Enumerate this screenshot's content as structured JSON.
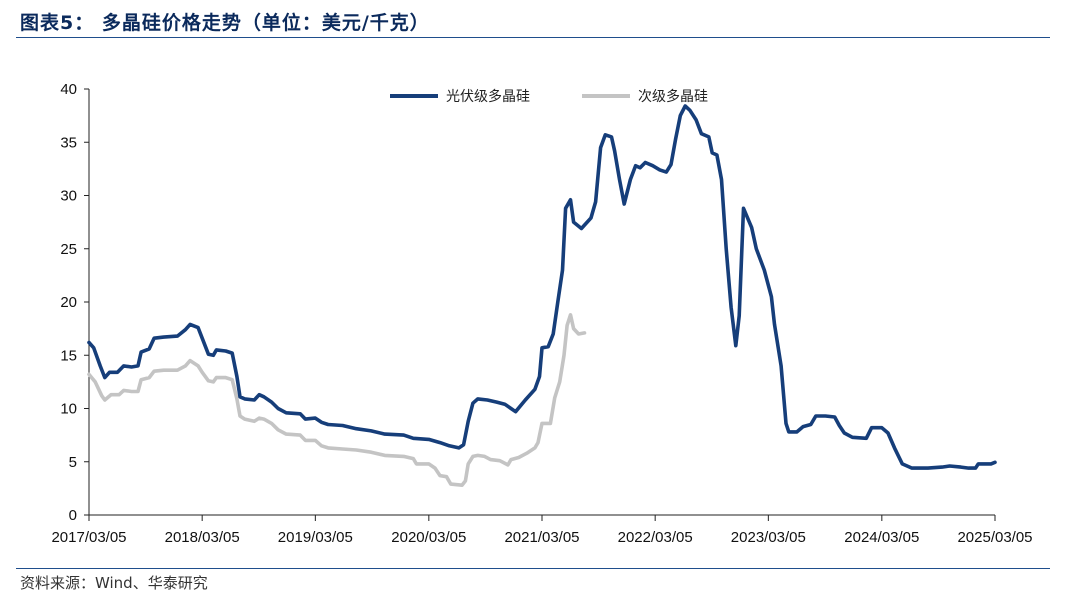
{
  "header": {
    "figure_title": "图表5： 多晶硅价格走势（单位：美元/千克）"
  },
  "footer": {
    "source": "资料来源：Wind、华泰研究"
  },
  "chart_data": {
    "type": "line",
    "title": "多晶硅价格走势（单位：美元/千克）",
    "xlabel": "",
    "ylabel": "",
    "ylim": [
      0,
      40
    ],
    "xlim": [
      "2017/03/05",
      "2025/03/05"
    ],
    "yticks": [
      0,
      5,
      10,
      15,
      20,
      25,
      30,
      35,
      40
    ],
    "yticks_labels": [
      "0",
      "5",
      "10",
      "15",
      "20",
      "25",
      "30",
      "35",
      "40"
    ],
    "xticks": [
      "2017/03/05",
      "2018/03/05",
      "2019/03/05",
      "2020/03/05",
      "2021/03/05",
      "2022/03/05",
      "2023/03/05",
      "2024/03/05",
      "2025/03/05"
    ],
    "grid": false,
    "legend_position": "top",
    "series": [
      {
        "name": "光伏级多晶硅",
        "color": "#163e7a",
        "points": [
          [
            "2017/03/05",
            16.2
          ],
          [
            "2017/03/20",
            15.7
          ],
          [
            "2017/04/10",
            14.0
          ],
          [
            "2017/04/25",
            12.9
          ],
          [
            "2017/05/10",
            13.4
          ],
          [
            "2017/06/05",
            13.4
          ],
          [
            "2017/06/25",
            14.0
          ],
          [
            "2017/07/20",
            13.9
          ],
          [
            "2017/08/10",
            14.0
          ],
          [
            "2017/08/20",
            15.3
          ],
          [
            "2017/09/15",
            15.6
          ],
          [
            "2017/10/01",
            16.6
          ],
          [
            "2017/11/01",
            16.7
          ],
          [
            "2017/12/15",
            16.8
          ],
          [
            "2018/01/10",
            17.4
          ],
          [
            "2018/01/25",
            17.9
          ],
          [
            "2018/02/20",
            17.6
          ],
          [
            "2018/03/05",
            16.6
          ],
          [
            "2018/03/25",
            15.1
          ],
          [
            "2018/04/10",
            15.0
          ],
          [
            "2018/04/20",
            15.5
          ],
          [
            "2018/05/20",
            15.4
          ],
          [
            "2018/06/10",
            15.2
          ],
          [
            "2018/06/25",
            13.0
          ],
          [
            "2018/07/05",
            11.1
          ],
          [
            "2018/07/20",
            10.9
          ],
          [
            "2018/08/20",
            10.8
          ],
          [
            "2018/09/05",
            11.3
          ],
          [
            "2018/09/20",
            11.1
          ],
          [
            "2018/10/15",
            10.6
          ],
          [
            "2018/11/05",
            10.0
          ],
          [
            "2018/12/01",
            9.6
          ],
          [
            "2019/01/15",
            9.5
          ],
          [
            "2019/02/01",
            9.0
          ],
          [
            "2019/03/05",
            9.1
          ],
          [
            "2019/03/25",
            8.7
          ],
          [
            "2019/04/15",
            8.5
          ],
          [
            "2019/06/01",
            8.4
          ],
          [
            "2019/07/15",
            8.1
          ],
          [
            "2019/09/01",
            7.9
          ],
          [
            "2019/10/15",
            7.6
          ],
          [
            "2019/12/15",
            7.5
          ],
          [
            "2020/01/15",
            7.2
          ],
          [
            "2020/03/05",
            7.1
          ],
          [
            "2020/04/10",
            6.8
          ],
          [
            "2020/05/10",
            6.5
          ],
          [
            "2020/06/10",
            6.3
          ],
          [
            "2020/06/25",
            6.6
          ],
          [
            "2020/07/10",
            8.8
          ],
          [
            "2020/07/25",
            10.5
          ],
          [
            "2020/08/10",
            10.9
          ],
          [
            "2020/09/10",
            10.8
          ],
          [
            "2020/10/10",
            10.6
          ],
          [
            "2020/11/05",
            10.4
          ],
          [
            "2020/11/25",
            10.0
          ],
          [
            "2020/12/10",
            9.7
          ],
          [
            "2021/01/10",
            10.8
          ],
          [
            "2021/02/10",
            11.8
          ],
          [
            "2021/02/25",
            13.0
          ],
          [
            "2021/03/05",
            15.7
          ],
          [
            "2021/03/25",
            15.8
          ],
          [
            "2021/04/10",
            17.0
          ],
          [
            "2021/04/25",
            20.0
          ],
          [
            "2021/05/10",
            23.0
          ],
          [
            "2021/05/20",
            28.8
          ],
          [
            "2021/06/05",
            29.6
          ],
          [
            "2021/06/15",
            27.5
          ],
          [
            "2021/07/10",
            26.9
          ],
          [
            "2021/08/10",
            27.9
          ],
          [
            "2021/08/25",
            29.4
          ],
          [
            "2021/09/10",
            34.5
          ],
          [
            "2021/09/25",
            35.7
          ],
          [
            "2021/10/15",
            35.5
          ],
          [
            "2021/10/25",
            34.2
          ],
          [
            "2021/11/10",
            31.5
          ],
          [
            "2021/11/25",
            29.2
          ],
          [
            "2021/12/15",
            31.5
          ],
          [
            "2022/01/01",
            32.8
          ],
          [
            "2022/01/15",
            32.6
          ],
          [
            "2022/02/01",
            33.1
          ],
          [
            "2022/02/25",
            32.8
          ],
          [
            "2022/03/20",
            32.4
          ],
          [
            "2022/04/10",
            32.2
          ],
          [
            "2022/04/25",
            32.9
          ],
          [
            "2022/05/10",
            35.3
          ],
          [
            "2022/05/25",
            37.5
          ],
          [
            "2022/06/10",
            38.4
          ],
          [
            "2022/06/25",
            38.0
          ],
          [
            "2022/07/15",
            37.1
          ],
          [
            "2022/08/01",
            35.8
          ],
          [
            "2022/08/25",
            35.5
          ],
          [
            "2022/09/05",
            34.0
          ],
          [
            "2022/09/20",
            33.8
          ],
          [
            "2022/10/05",
            31.5
          ],
          [
            "2022/10/20",
            25.0
          ],
          [
            "2022/11/05",
            19.5
          ],
          [
            "2022/11/20",
            15.9
          ],
          [
            "2022/12/01",
            18.7
          ],
          [
            "2022/12/15",
            28.8
          ],
          [
            "2023/01/10",
            27.0
          ],
          [
            "2023/01/25",
            25.0
          ],
          [
            "2023/02/20",
            23.0
          ],
          [
            "2023/03/15",
            20.5
          ],
          [
            "2023/03/25",
            17.9
          ],
          [
            "2023/04/15",
            14.0
          ],
          [
            "2023/05/01",
            8.6
          ],
          [
            "2023/05/10",
            7.8
          ],
          [
            "2023/06/05",
            7.8
          ],
          [
            "2023/06/25",
            8.3
          ],
          [
            "2023/07/20",
            8.5
          ],
          [
            "2023/08/05",
            9.3
          ],
          [
            "2023/09/05",
            9.3
          ],
          [
            "2023/10/05",
            9.2
          ],
          [
            "2023/10/20",
            8.4
          ],
          [
            "2023/11/05",
            7.7
          ],
          [
            "2023/12/01",
            7.3
          ],
          [
            "2024/01/15",
            7.2
          ],
          [
            "2024/02/01",
            8.2
          ],
          [
            "2024/03/05",
            8.2
          ],
          [
            "2024/03/25",
            7.7
          ],
          [
            "2024/04/15",
            6.3
          ],
          [
            "2024/05/10",
            4.8
          ],
          [
            "2024/06/10",
            4.4
          ],
          [
            "2024/08/01",
            4.4
          ],
          [
            "2024/09/15",
            4.5
          ],
          [
            "2024/10/10",
            4.6
          ],
          [
            "2024/11/15",
            4.5
          ],
          [
            "2024/12/10",
            4.4
          ],
          [
            "2025/01/01",
            4.4
          ],
          [
            "2025/01/10",
            4.8
          ],
          [
            "2025/02/20",
            4.8
          ],
          [
            "2025/03/05",
            4.95
          ]
        ]
      },
      {
        "name": "次级多晶硅",
        "color": "#c4c4c4",
        "points": [
          [
            "2017/03/05",
            13.2
          ],
          [
            "2017/03/25",
            12.5
          ],
          [
            "2017/04/15",
            11.2
          ],
          [
            "2017/04/25",
            10.8
          ],
          [
            "2017/05/15",
            11.3
          ],
          [
            "2017/06/10",
            11.3
          ],
          [
            "2017/06/25",
            11.7
          ],
          [
            "2017/07/20",
            11.6
          ],
          [
            "2017/08/10",
            11.6
          ],
          [
            "2017/08/20",
            12.7
          ],
          [
            "2017/09/15",
            12.9
          ],
          [
            "2017/10/01",
            13.5
          ],
          [
            "2017/11/01",
            13.6
          ],
          [
            "2017/12/15",
            13.6
          ],
          [
            "2018/01/10",
            14.0
          ],
          [
            "2018/01/25",
            14.5
          ],
          [
            "2018/02/20",
            14.0
          ],
          [
            "2018/03/05",
            13.4
          ],
          [
            "2018/03/25",
            12.6
          ],
          [
            "2018/04/10",
            12.5
          ],
          [
            "2018/04/20",
            12.9
          ],
          [
            "2018/05/20",
            12.9
          ],
          [
            "2018/06/10",
            12.7
          ],
          [
            "2018/06/25",
            10.9
          ],
          [
            "2018/07/05",
            9.3
          ],
          [
            "2018/07/20",
            9.0
          ],
          [
            "2018/08/20",
            8.8
          ],
          [
            "2018/09/05",
            9.1
          ],
          [
            "2018/09/20",
            9.0
          ],
          [
            "2018/10/15",
            8.6
          ],
          [
            "2018/11/05",
            8.0
          ],
          [
            "2018/12/01",
            7.6
          ],
          [
            "2019/01/15",
            7.5
          ],
          [
            "2019/02/01",
            7.0
          ],
          [
            "2019/03/05",
            7.0
          ],
          [
            "2019/03/25",
            6.5
          ],
          [
            "2019/04/15",
            6.3
          ],
          [
            "2019/06/01",
            6.2
          ],
          [
            "2019/07/15",
            6.1
          ],
          [
            "2019/09/01",
            5.9
          ],
          [
            "2019/10/15",
            5.6
          ],
          [
            "2019/12/15",
            5.5
          ],
          [
            "2020/01/15",
            5.3
          ],
          [
            "2020/01/25",
            4.8
          ],
          [
            "2020/03/05",
            4.8
          ],
          [
            "2020/03/25",
            4.4
          ],
          [
            "2020/04/10",
            3.7
          ],
          [
            "2020/05/01",
            3.6
          ],
          [
            "2020/05/15",
            2.9
          ],
          [
            "2020/06/20",
            2.8
          ],
          [
            "2020/07/01",
            3.2
          ],
          [
            "2020/07/10",
            4.8
          ],
          [
            "2020/07/25",
            5.5
          ],
          [
            "2020/08/10",
            5.6
          ],
          [
            "2020/09/01",
            5.5
          ],
          [
            "2020/09/20",
            5.2
          ],
          [
            "2020/10/20",
            5.1
          ],
          [
            "2020/11/15",
            4.7
          ],
          [
            "2020/11/25",
            5.2
          ],
          [
            "2020/12/20",
            5.4
          ],
          [
            "2021/01/15",
            5.8
          ],
          [
            "2021/02/10",
            6.3
          ],
          [
            "2021/02/20",
            6.8
          ],
          [
            "2021/03/05",
            8.6
          ],
          [
            "2021/04/01",
            8.6
          ],
          [
            "2021/04/15",
            11.0
          ],
          [
            "2021/05/01",
            12.5
          ],
          [
            "2021/05/15",
            15.0
          ],
          [
            "2021/05/25",
            17.8
          ],
          [
            "2021/06/05",
            18.8
          ],
          [
            "2021/06/15",
            17.5
          ],
          [
            "2021/07/01",
            17.0
          ],
          [
            "2021/07/20",
            17.1
          ]
        ]
      }
    ]
  }
}
